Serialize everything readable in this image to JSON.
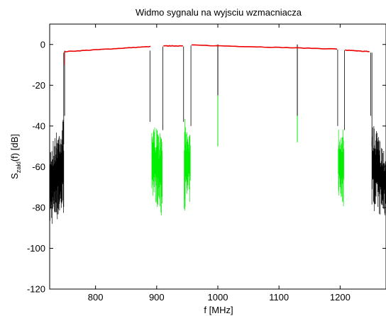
{
  "chart_data": {
    "type": "line",
    "title": "Widmo sygnalu na wyjsciu wzmacniacza",
    "xlabel": "f [MHz]",
    "ylabel": {
      "main": "S",
      "sub": "zakl",
      "tail": "(f) [dB]"
    },
    "xlim": [
      725,
      1275
    ],
    "ylim": [
      -120,
      10
    ],
    "xticks": [
      800,
      900,
      1000,
      1100,
      1200
    ],
    "yticks": [
      0,
      -20,
      -40,
      -60,
      -80,
      -100,
      -120
    ],
    "grid": false,
    "colors": {
      "outer_noise": "#000000",
      "inner_noise": "#00ee00",
      "band": "#ee0000",
      "edge": "#000000"
    },
    "bands": [
      {
        "x": [
          750,
          890
        ],
        "y": [
          -3.5,
          -1.0
        ]
      },
      {
        "x": [
          911,
          943
        ],
        "y": [
          -0.7,
          -0.7
        ]
      },
      {
        "x": [
          957,
          1195
        ],
        "y": [
          -0.3,
          -2.2
        ]
      },
      {
        "x": [
          1208,
          1248
        ],
        "y": [
          -2.8,
          -3.5
        ]
      }
    ],
    "notches": [
      {
        "x": 1000,
        "black_to": -25,
        "green_to": -50
      },
      {
        "x": 1130,
        "black_to": -35,
        "green_to": -48
      }
    ],
    "noise_regions": [
      {
        "name": "left-skirt",
        "x": [
          725,
          748
        ],
        "top": [
          -49,
          -35
        ],
        "bottom": [
          -90,
          -84
        ],
        "color": "outer_noise"
      },
      {
        "name": "right-skirt",
        "x": [
          1252,
          1275
        ],
        "top": [
          -38,
          -52
        ],
        "bottom": [
          -81,
          -86
        ],
        "color": "outer_noise"
      },
      {
        "name": "gap-890",
        "x": [
          892,
          909
        ],
        "top": [
          -38,
          -44
        ],
        "bottom": [
          -73,
          -86
        ],
        "color": "inner_noise"
      },
      {
        "name": "gap-945",
        "x": [
          945,
          955
        ],
        "top": [
          -36,
          -40
        ],
        "bottom": [
          -82,
          -78
        ],
        "color": "inner_noise"
      },
      {
        "name": "gap-1200",
        "x": [
          1197,
          1206
        ],
        "top": [
          -39,
          -42
        ],
        "bottom": [
          -75,
          -80
        ],
        "color": "inner_noise"
      }
    ]
  }
}
